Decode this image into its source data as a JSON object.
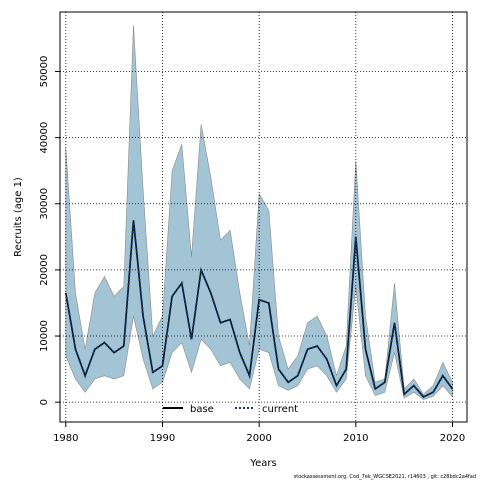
{
  "chart_data": {
    "type": "area",
    "xlabel": "Years",
    "ylabel": "Recruits (age 1)",
    "xlim": [
      1979.4,
      2021.5
    ],
    "ylim": [
      -3000,
      59000
    ],
    "x_ticks": [
      1980,
      1990,
      2000,
      2010,
      2020
    ],
    "y_ticks": [
      0,
      10000,
      20000,
      30000,
      40000,
      50000
    ],
    "grid": true,
    "legend_position": "bottom-center",
    "colors": {
      "band_fill": "#a3c4d5",
      "band_stroke": "#8a8a8a",
      "base_line": "#000000",
      "current_line": "#0d3a6e"
    },
    "x": [
      1980,
      1981,
      1982,
      1983,
      1984,
      1985,
      1986,
      1987,
      1988,
      1989,
      1990,
      1991,
      1992,
      1993,
      1994,
      1995,
      1996,
      1997,
      1998,
      1999,
      2000,
      2001,
      2002,
      2003,
      2004,
      2005,
      2006,
      2007,
      2008,
      2009,
      2010,
      2011,
      2012,
      2013,
      2014,
      2015,
      2016,
      2017,
      2018,
      2019,
      2020
    ],
    "series": [
      {
        "name": "base",
        "style": "solid",
        "values": [
          16500,
          8000,
          4000,
          8000,
          9000,
          7500,
          8500,
          27500,
          13000,
          4500,
          5500,
          16000,
          18000,
          9500,
          20000,
          16500,
          12000,
          12500,
          7500,
          4000,
          15500,
          15000,
          5000,
          3000,
          4000,
          8000,
          8500,
          6500,
          2500,
          5000,
          25000,
          8000,
          2000,
          3000,
          12000,
          1200,
          2500,
          800,
          1500,
          4000,
          2000
        ]
      },
      {
        "name": "current",
        "style": "dotted",
        "values": [
          16500,
          8000,
          4000,
          8000,
          9000,
          7500,
          8500,
          27500,
          13000,
          4500,
          5500,
          16000,
          18000,
          9500,
          20000,
          16500,
          12000,
          12500,
          7500,
          4000,
          15500,
          15000,
          5000,
          3000,
          4000,
          8000,
          8500,
          6500,
          2500,
          5000,
          25000,
          8000,
          2000,
          3000,
          12000,
          1200,
          2500,
          800,
          1500,
          4000,
          2000
        ]
      }
    ],
    "band": {
      "upper": [
        38500,
        16500,
        8000,
        16500,
        19000,
        16000,
        17500,
        57000,
        32000,
        10000,
        13000,
        35000,
        39000,
        22000,
        42000,
        34000,
        24500,
        26000,
        16500,
        8500,
        31500,
        29000,
        10000,
        5000,
        7000,
        12000,
        13000,
        10000,
        4000,
        8500,
        36500,
        13000,
        3000,
        3500,
        18000,
        2000,
        3500,
        1200,
        2500,
        6000,
        3000
      ],
      "lower": [
        7000,
        3500,
        1500,
        3500,
        4000,
        3500,
        4000,
        13000,
        6500,
        2000,
        3000,
        7500,
        9000,
        4500,
        9500,
        8000,
        5500,
        6000,
        3500,
        2000,
        8000,
        7500,
        2500,
        1800,
        2500,
        5000,
        5500,
        4000,
        1500,
        3500,
        17500,
        4000,
        1000,
        1500,
        7500,
        600,
        1500,
        400,
        900,
        2500,
        800
      ]
    },
    "legend": [
      "base",
      "current"
    ]
  },
  "footer_text": "stockassessment.org, Cod_7ek_WGCSE2021, r14603 , git: c28bdc2a4fad"
}
